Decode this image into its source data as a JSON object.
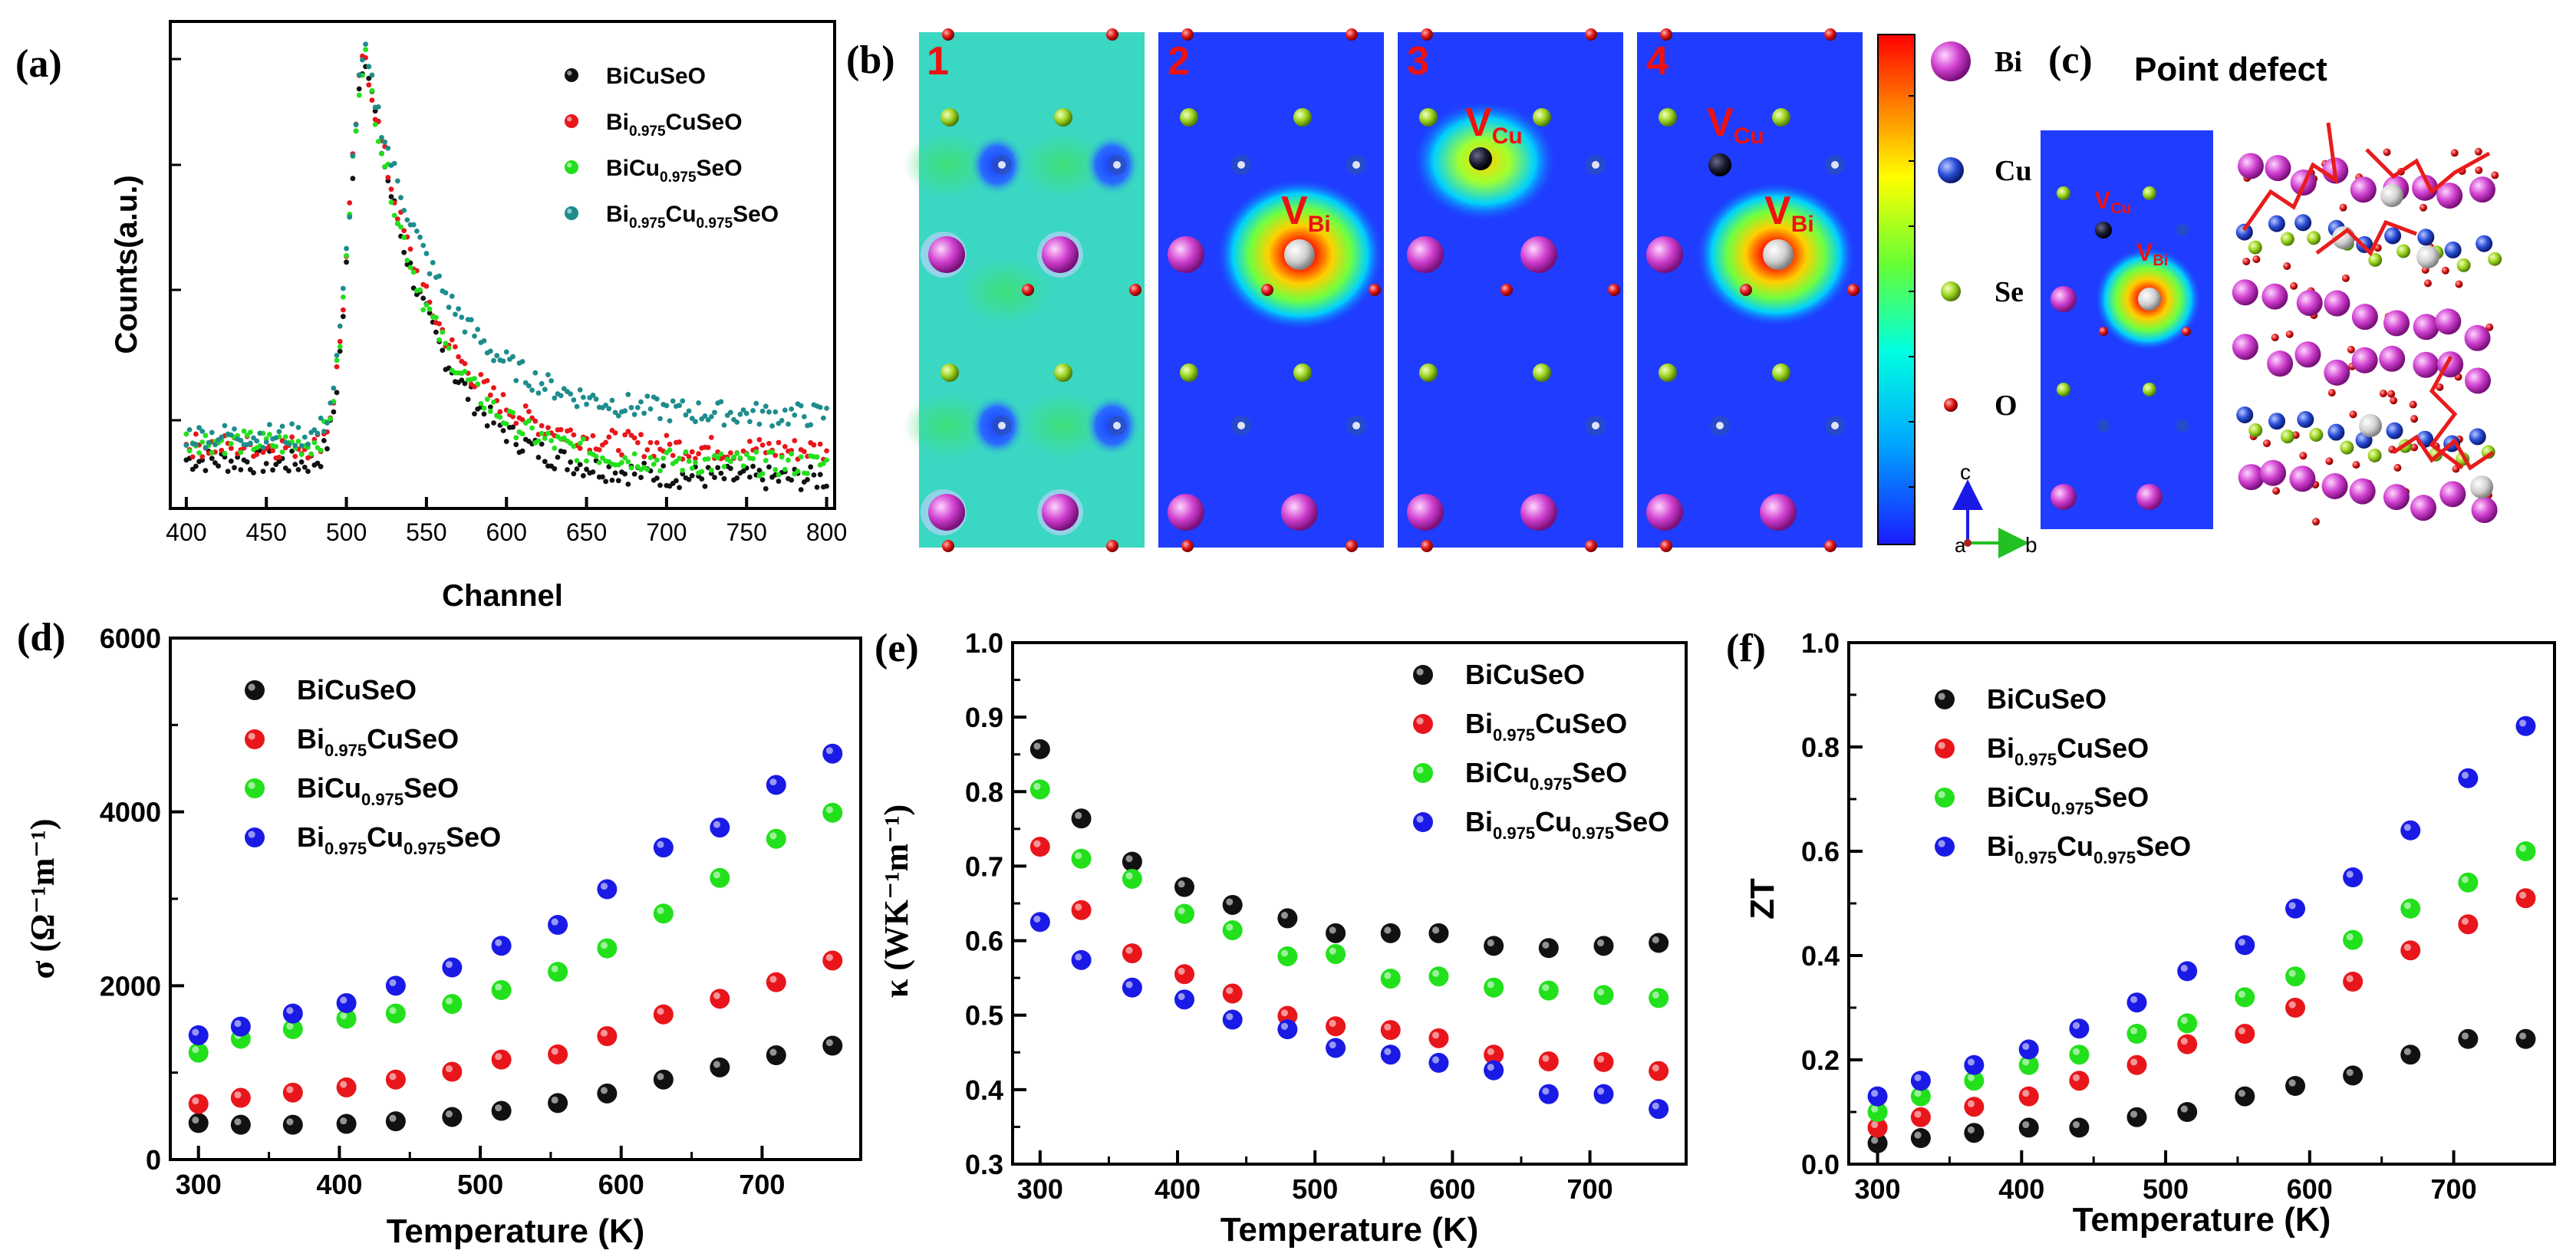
{
  "panels": {
    "a": "(a)",
    "b": "(b)",
    "c": "(c)",
    "d": "(d)",
    "e": "(e)",
    "f": "(f)"
  },
  "legend": {
    "s1": {
      "pre": "BiCuSeO"
    },
    "s2": {
      "pre": "Bi",
      "sub": "0.975",
      "post": "CuSeO"
    },
    "s3": {
      "pre": "BiCu",
      "sub": "0.975",
      "post": "SeO"
    },
    "s4": {
      "pre": "Bi",
      "sub": "0.975",
      "mid": "Cu",
      "sub2": "0.975",
      "post": "SeO"
    }
  },
  "colors": {
    "s1": "#111111",
    "s2": "#e8161b",
    "s3": "#22e01c",
    "s4": "#1a1ae6",
    "s4_panel_a": "#1f8c8c"
  },
  "panel_b": {
    "tile_numbers": [
      "1",
      "2",
      "3",
      "4"
    ],
    "vacancy_bi": {
      "main": "V",
      "sub": "Bi"
    },
    "vacancy_cu": {
      "main": "V",
      "sub": "Cu"
    },
    "atom_legend": [
      "Bi",
      "Cu",
      "Se",
      "O"
    ],
    "axis_c": "c",
    "axis_a": "a",
    "axis_b": "b"
  },
  "panel_c": {
    "title": "Point defect"
  },
  "chart_data": [
    {
      "id": "a",
      "type": "scatter",
      "title": "",
      "xlabel": "Channel",
      "ylabel": "Counts(a.u.)",
      "xlim": [
        390,
        805
      ],
      "ylim": [
        0,
        1.0
      ],
      "xticks": [
        400,
        450,
        500,
        550,
        600,
        650,
        700,
        750,
        800
      ],
      "yticks": [],
      "peak_channel": 512,
      "series": [
        {
          "name": "BiCuSeO",
          "baseline_left": 0.1,
          "baseline_right": 0.06,
          "peak": 0.93
        },
        {
          "name": "Bi0.975CuSeO",
          "baseline_left": 0.13,
          "baseline_right": 0.11,
          "peak": 0.93
        },
        {
          "name": "BiCu0.975SeO",
          "baseline_left": 0.14,
          "baseline_right": 0.09,
          "peak": 0.93
        },
        {
          "name": "Bi0.975Cu0.975SeO",
          "baseline_left": 0.15,
          "baseline_right": 0.15,
          "peak": 0.93
        }
      ]
    },
    {
      "id": "d",
      "type": "scatter",
      "title": "",
      "xlabel": "Temperature (K)",
      "ylabel": "σ (Ω⁻¹m⁻¹)",
      "xlim": [
        280,
        770
      ],
      "ylim": [
        0,
        6000
      ],
      "xticks": [
        300,
        400,
        500,
        600,
        700
      ],
      "yticks": [
        0,
        2000,
        4000,
        6000
      ],
      "x": [
        300,
        330,
        367,
        405,
        440,
        480,
        515,
        555,
        590,
        630,
        670,
        710,
        750
      ],
      "series": [
        {
          "name": "BiCuSeO",
          "values": [
            420,
            400,
            400,
            410,
            440,
            490,
            560,
            650,
            760,
            920,
            1060,
            1200,
            1310
          ]
        },
        {
          "name": "Bi0.975CuSeO",
          "values": [
            640,
            710,
            770,
            830,
            920,
            1010,
            1150,
            1210,
            1420,
            1670,
            1850,
            2040,
            2290
          ]
        },
        {
          "name": "BiCu0.975SeO",
          "values": [
            1230,
            1390,
            1500,
            1620,
            1680,
            1790,
            1950,
            2160,
            2430,
            2830,
            3240,
            3690,
            3990
          ]
        },
        {
          "name": "Bi0.975Cu0.975SeO",
          "values": [
            1430,
            1530,
            1680,
            1800,
            2000,
            2210,
            2460,
            2700,
            3110,
            3590,
            3820,
            4310,
            4670
          ]
        }
      ]
    },
    {
      "id": "e",
      "type": "scatter",
      "title": "",
      "xlabel": "Temperature (K)",
      "ylabel": "κ (WK⁻¹m⁻¹)",
      "xlim": [
        280,
        770
      ],
      "ylim": [
        0.3,
        1.0
      ],
      "xticks": [
        300,
        400,
        500,
        600,
        700
      ],
      "yticks": [
        0.3,
        0.4,
        0.5,
        0.6,
        0.7,
        0.8,
        0.9,
        1.0
      ],
      "x": [
        300,
        330,
        367,
        405,
        440,
        480,
        515,
        555,
        590,
        630,
        670,
        710,
        750
      ],
      "series": [
        {
          "name": "BiCuSeO",
          "values": [
            0.857,
            0.764,
            0.706,
            0.672,
            0.648,
            0.63,
            0.61,
            0.61,
            0.61,
            0.593,
            0.59,
            0.593,
            0.597
          ]
        },
        {
          "name": "Bi0.975CuSeO",
          "values": [
            0.726,
            0.641,
            0.583,
            0.555,
            0.529,
            0.499,
            0.485,
            0.48,
            0.469,
            0.447,
            0.438,
            0.437,
            0.425
          ]
        },
        {
          "name": "BiCu0.975SeO",
          "values": [
            0.803,
            0.71,
            0.683,
            0.636,
            0.614,
            0.579,
            0.582,
            0.549,
            0.552,
            0.537,
            0.533,
            0.527,
            0.523
          ]
        },
        {
          "name": "Bi0.975Cu0.975SeO",
          "values": [
            0.625,
            0.574,
            0.537,
            0.521,
            0.494,
            0.481,
            0.456,
            0.447,
            0.436,
            0.426,
            0.394,
            0.394,
            0.374
          ]
        }
      ]
    },
    {
      "id": "f",
      "type": "scatter",
      "title": "",
      "xlabel": "Temperature (K)",
      "ylabel": "ZT",
      "xlim": [
        280,
        770
      ],
      "ylim": [
        0.0,
        1.0
      ],
      "xticks": [
        300,
        400,
        500,
        600,
        700
      ],
      "yticks": [
        0.0,
        0.2,
        0.4,
        0.6,
        0.8,
        1.0
      ],
      "x": [
        300,
        330,
        367,
        405,
        440,
        480,
        515,
        555,
        590,
        630,
        670,
        710,
        750
      ],
      "series": [
        {
          "name": "BiCuSeO",
          "values": [
            0.04,
            0.05,
            0.06,
            0.07,
            0.07,
            0.09,
            0.1,
            0.13,
            0.15,
            0.17,
            0.21,
            0.24,
            0.24
          ]
        },
        {
          "name": "Bi0.975CuSeO",
          "values": [
            0.07,
            0.09,
            0.11,
            0.13,
            0.16,
            0.19,
            0.23,
            0.25,
            0.3,
            0.35,
            0.41,
            0.46,
            0.51
          ]
        },
        {
          "name": "BiCu0.975SeO",
          "values": [
            0.1,
            0.13,
            0.16,
            0.19,
            0.21,
            0.25,
            0.27,
            0.32,
            0.36,
            0.43,
            0.49,
            0.54,
            0.6
          ]
        },
        {
          "name": "Bi0.975Cu0.975SeO",
          "values": [
            0.13,
            0.16,
            0.19,
            0.22,
            0.26,
            0.31,
            0.37,
            0.42,
            0.49,
            0.55,
            0.64,
            0.74,
            0.84
          ]
        }
      ]
    }
  ]
}
